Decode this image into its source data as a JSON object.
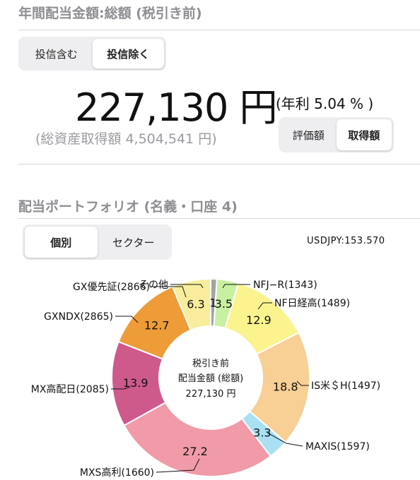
{
  "summary": {
    "title": "年間配当金額:総額 (税引き前)",
    "fund_toggle": {
      "options": [
        "投信含む",
        "投信除く"
      ],
      "selected": 1
    },
    "amount": "227,130 円",
    "rate": "(年利 5.04 % )",
    "total_acquisition": "(総資産取得額 4,504,541 円)",
    "basis_toggle": {
      "options": [
        "評価額",
        "取得額"
      ],
      "selected": 1
    }
  },
  "portfolio": {
    "title": "配当ポートフォリオ (名義・口座 4)",
    "view_toggle": {
      "options": [
        "個別",
        "セクター"
      ],
      "selected": 0
    },
    "usdjpy": "USDJPY:153.570",
    "center_label": [
      "税引き前",
      "配当金額 (総額)",
      "227,130 円"
    ]
  },
  "chart_data": {
    "type": "pie",
    "title": "",
    "unit": "%",
    "slices": [
      {
        "label": "その他",
        "value_label": "1",
        "value": 1.0,
        "color": "#a3a3a3"
      },
      {
        "label": "NFJ−R(1343)",
        "value_label": "3.5",
        "value": 3.5,
        "color": "#c8f0a2"
      },
      {
        "label": "NF日経高(1489)",
        "value_label": "12.9",
        "value": 12.9,
        "color": "#fbf38e"
      },
      {
        "label": "IS米＄H(1497)",
        "value_label": "18.8",
        "value": 18.8,
        "color": "#f8cf94"
      },
      {
        "label": "MAXIS(1597)",
        "value_label": "3.3",
        "value": 3.3,
        "color": "#a9e1f3"
      },
      {
        "label": "MXS高利(1660)",
        "value_label": "27.2",
        "value": 27.2,
        "color": "#f09ba7"
      },
      {
        "label": "MX高配日(2085)",
        "value_label": "13.9",
        "value": 13.9,
        "color": "#ce5a8c"
      },
      {
        "label": "GXNDX(2865)",
        "value_label": "12.7",
        "value": 12.7,
        "color": "#ee9c38"
      },
      {
        "label": "GX優先証(2866)",
        "value_label": "6.3",
        "value": 6.3,
        "color": "#f8ed9c"
      }
    ]
  }
}
